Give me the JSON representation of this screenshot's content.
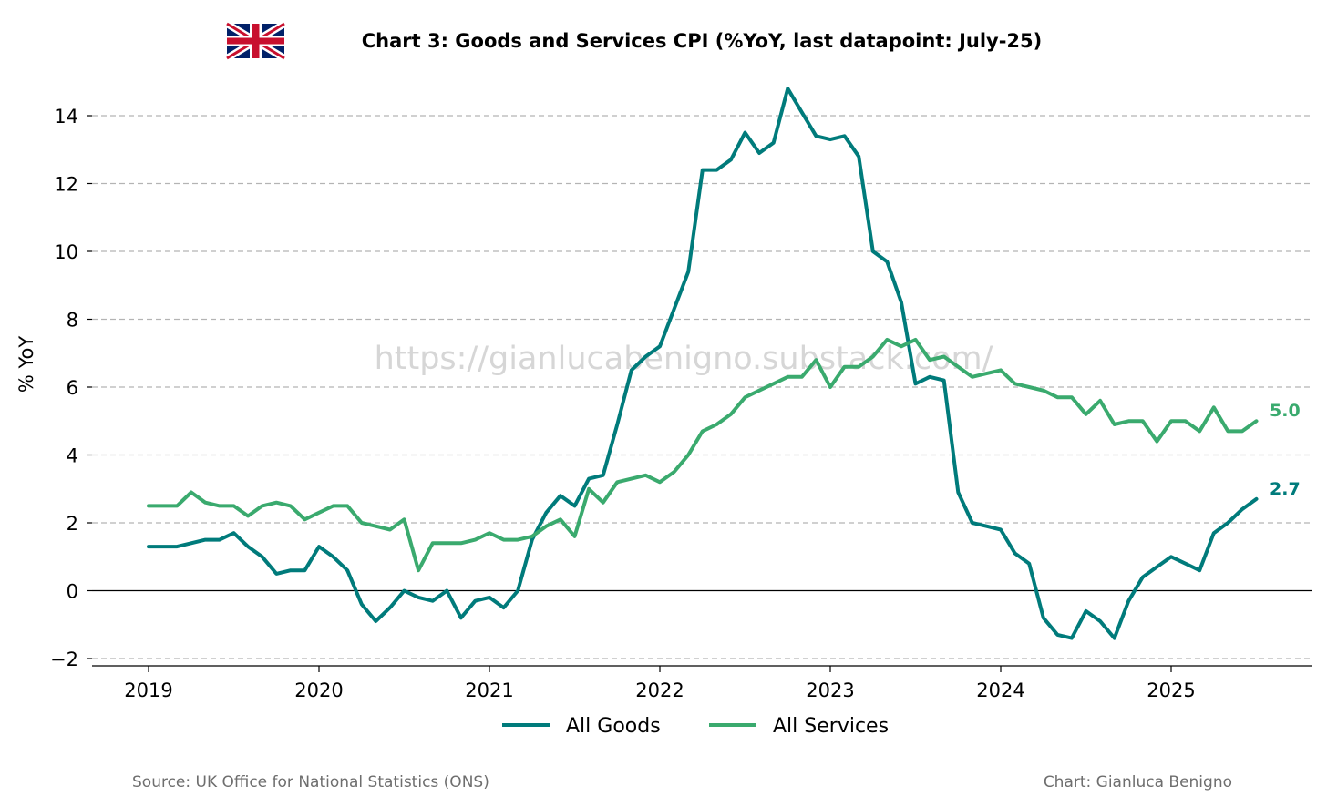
{
  "header": {
    "flag_icon": "union-jack-flag-icon",
    "title": "Chart 3: Goods and Services CPI (%YoY, last datapoint: July-25)"
  },
  "watermark": "https://gianlucabenigno.substack.com/",
  "footer": {
    "source": "Source: UK Office for National Statistics (ONS)",
    "credit": "Chart: Gianluca Benigno"
  },
  "colors": {
    "goods": "#007b7b",
    "services": "#3aaa6e"
  },
  "chart_data": {
    "type": "line",
    "title": "Chart 3: Goods and Services CPI (%YoY, last datapoint: July-25)",
    "ylabel": "% YoY",
    "xlabel": "",
    "ylim": [
      -2.3,
      15.2
    ],
    "xlim": [
      "2018-09",
      "2025-11"
    ],
    "yticks": [
      -2,
      0,
      2,
      4,
      6,
      8,
      10,
      12,
      14
    ],
    "ytick_labels": [
      "−2",
      "0",
      "2",
      "4",
      "6",
      "8",
      "10",
      "12",
      "14"
    ],
    "xticks": [
      "2019",
      "2020",
      "2021",
      "2022",
      "2023",
      "2024",
      "2025"
    ],
    "grid": "horizontal dashed",
    "legend_position": "bottom-center",
    "x_start": "2019-01",
    "x_end": "2025-07",
    "frequency": "monthly",
    "series": [
      {
        "name": "All Goods",
        "end_label": "2.7",
        "values": [
          1.3,
          1.3,
          1.3,
          1.4,
          1.5,
          1.5,
          1.7,
          1.3,
          1.0,
          0.5,
          0.6,
          0.6,
          1.3,
          1.0,
          0.6,
          -0.4,
          -0.9,
          -0.5,
          0.0,
          -0.2,
          -0.3,
          0.0,
          -0.8,
          -0.3,
          -0.2,
          -0.5,
          0.0,
          1.5,
          2.3,
          2.8,
          2.5,
          3.3,
          3.4,
          4.9,
          6.5,
          6.9,
          7.2,
          8.3,
          9.4,
          12.4,
          12.4,
          12.7,
          13.5,
          12.9,
          13.2,
          14.8,
          14.1,
          13.4,
          13.3,
          13.4,
          12.8,
          10.0,
          9.7,
          8.5,
          6.1,
          6.3,
          6.2,
          2.9,
          2.0,
          1.9,
          1.8,
          1.1,
          0.8,
          -0.8,
          -1.3,
          -1.4,
          -0.6,
          -0.9,
          -1.4,
          -0.3,
          0.4,
          0.7,
          1.0,
          0.8,
          0.6,
          1.7,
          2.0,
          2.4,
          2.7
        ]
      },
      {
        "name": "All Services",
        "end_label": "5.0",
        "values": [
          2.5,
          2.5,
          2.5,
          2.9,
          2.6,
          2.5,
          2.5,
          2.2,
          2.5,
          2.6,
          2.5,
          2.1,
          2.3,
          2.5,
          2.5,
          2.0,
          1.9,
          1.8,
          2.1,
          0.6,
          1.4,
          1.4,
          1.4,
          1.5,
          1.7,
          1.5,
          1.5,
          1.6,
          1.9,
          2.1,
          1.6,
          3.0,
          2.6,
          3.2,
          3.3,
          3.4,
          3.2,
          3.5,
          4.0,
          4.7,
          4.9,
          5.2,
          5.7,
          5.9,
          6.1,
          6.3,
          6.3,
          6.8,
          6.0,
          6.6,
          6.6,
          6.9,
          7.4,
          7.2,
          7.4,
          6.8,
          6.9,
          6.6,
          6.3,
          6.4,
          6.5,
          6.1,
          6.0,
          5.9,
          5.7,
          5.7,
          5.2,
          5.6,
          4.9,
          5.0,
          5.0,
          4.4,
          5.0,
          5.0,
          4.7,
          5.4,
          4.7,
          4.7,
          5.0
        ]
      }
    ]
  }
}
